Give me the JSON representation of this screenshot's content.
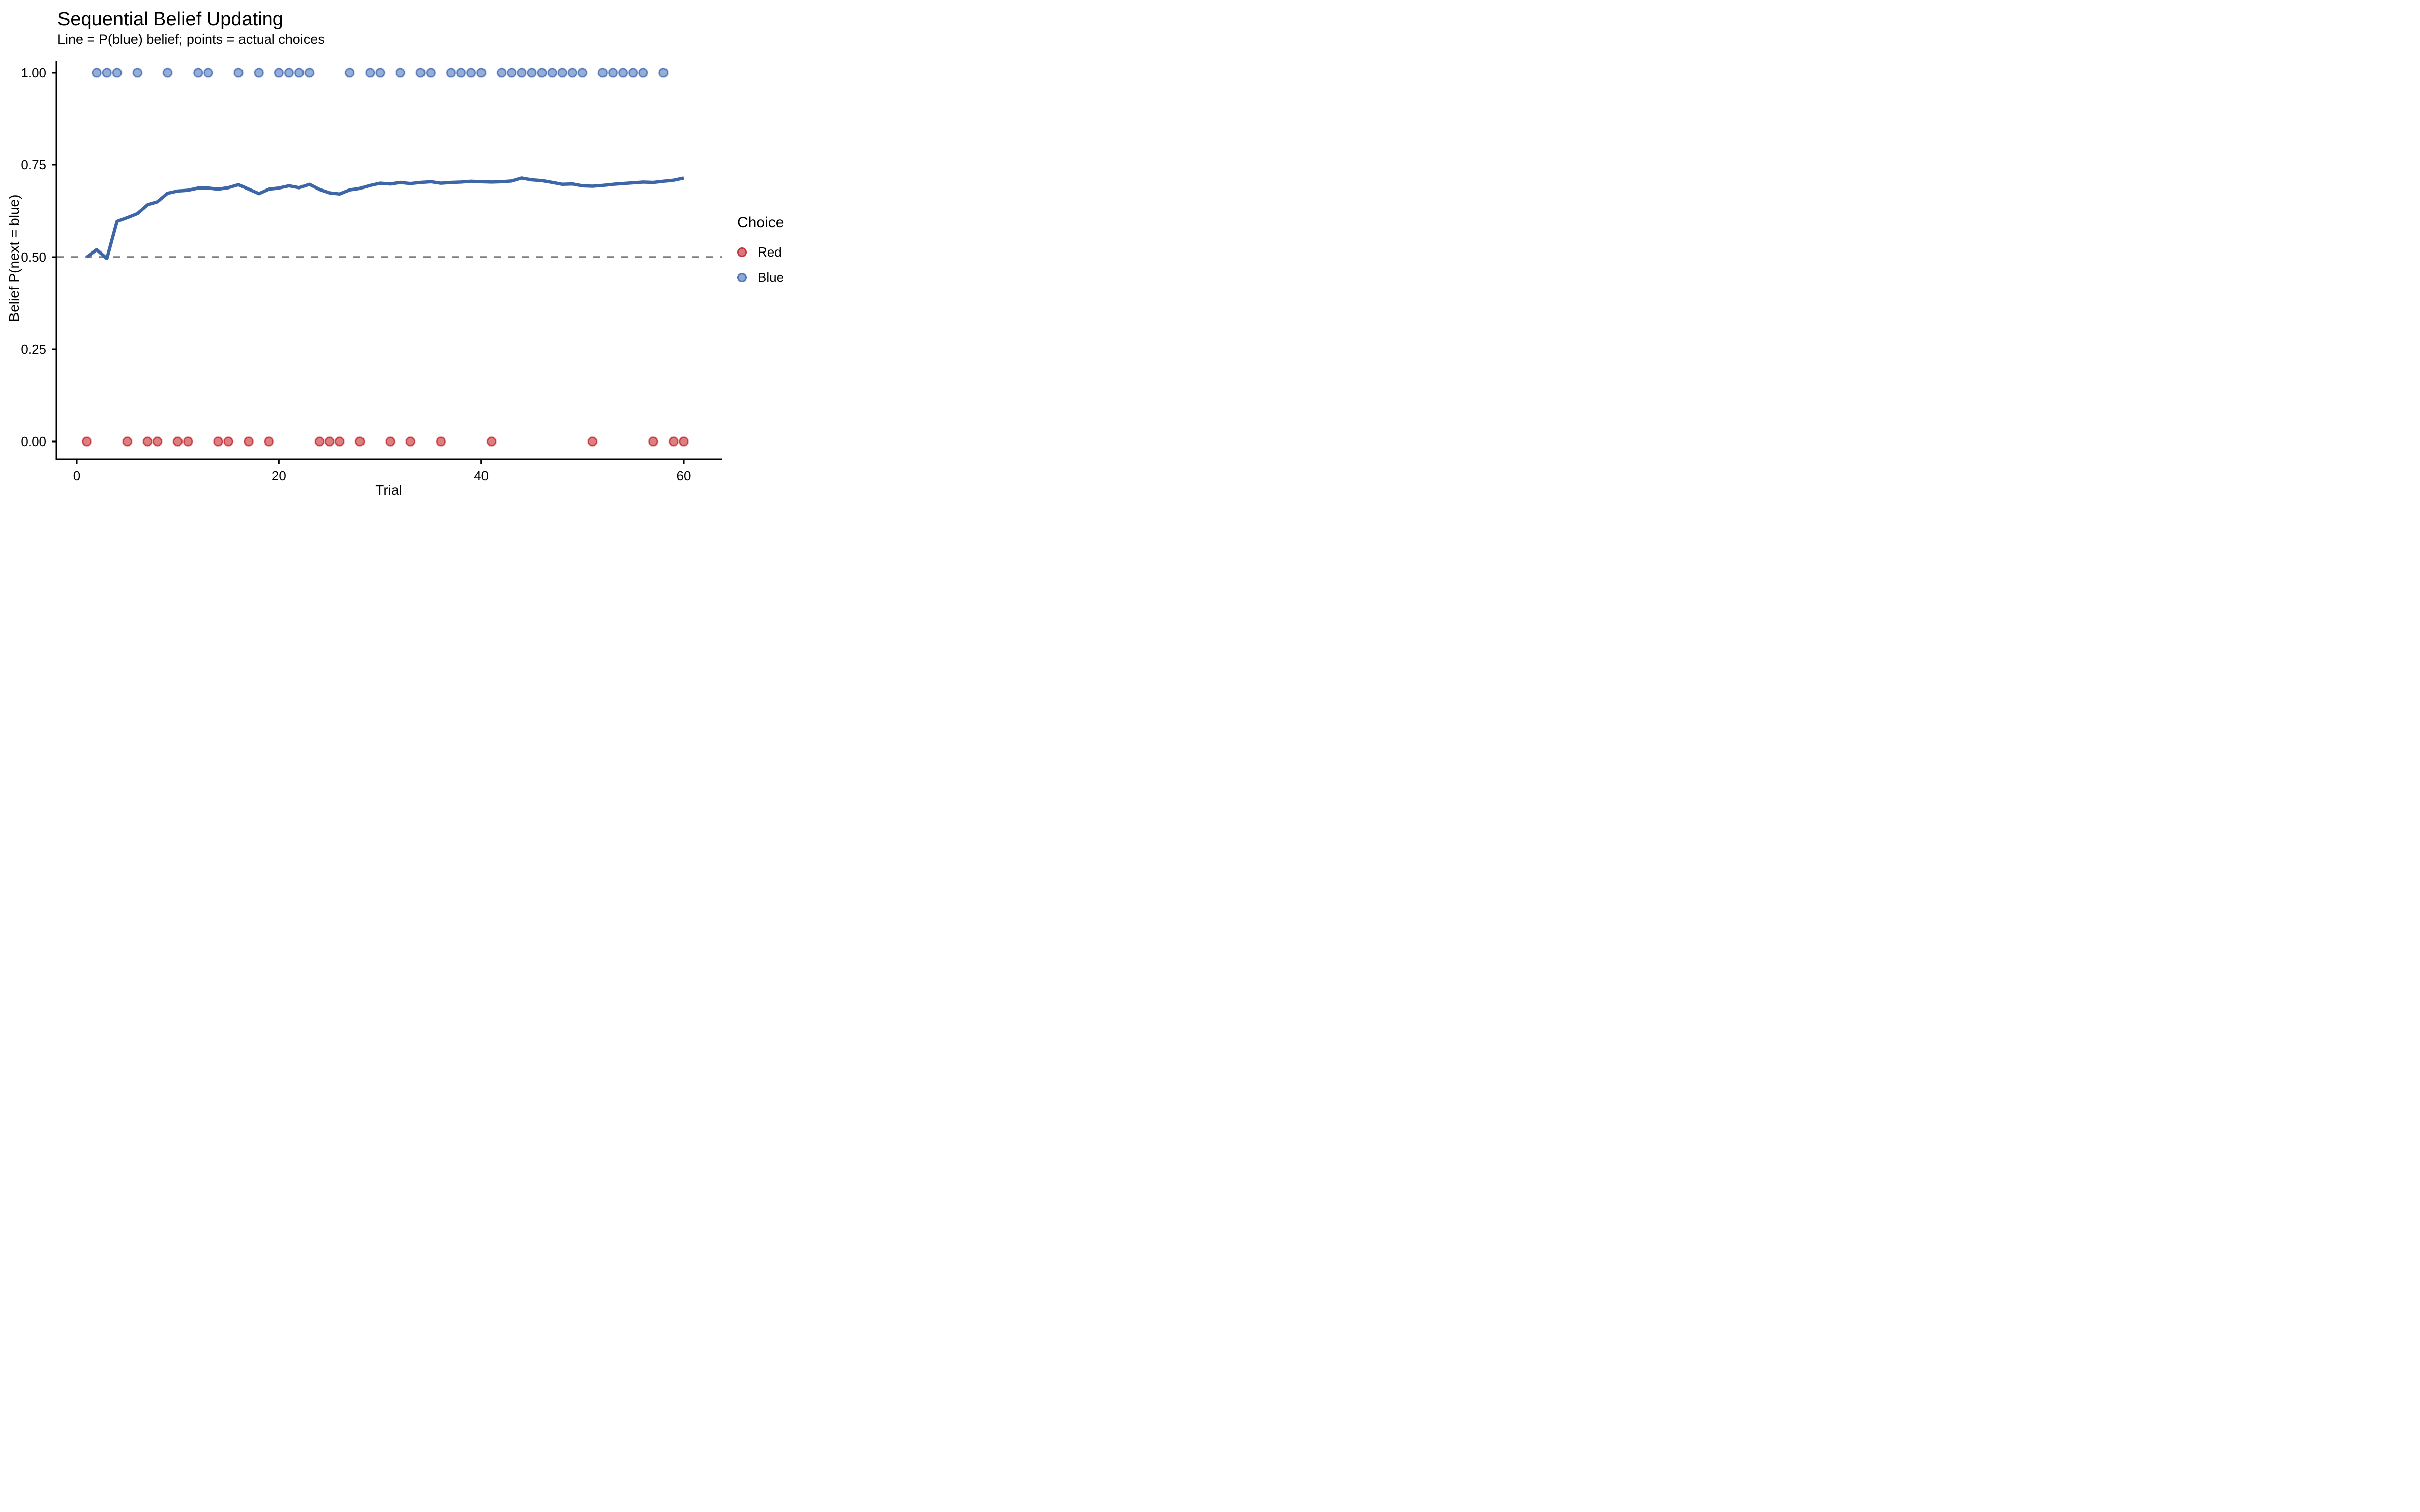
{
  "title": "Sequential Belief Updating",
  "subtitle": "Line = P(blue) belief; points = actual choices",
  "axes": {
    "x": {
      "label": "Trial",
      "tick_values": [
        0,
        20,
        40,
        60
      ],
      "tick_labels": [
        "0",
        "20",
        "40",
        "60"
      ],
      "range": [
        0,
        62
      ]
    },
    "y": {
      "label": "Belief P(next = blue)",
      "tick_values": [
        1.0,
        0.75,
        0.5,
        0.25,
        0.0
      ],
      "tick_labels": [
        "1.00",
        "0.75",
        "0.50",
        "0.25",
        "0.00"
      ],
      "range": [
        0,
        1
      ]
    }
  },
  "legend": {
    "title": "Choice",
    "items": [
      {
        "label": "Red",
        "fill": "#DB787B",
        "stroke": "#C5383F"
      },
      {
        "label": "Blue",
        "fill": "#8FA8D5",
        "stroke": "#5276B7"
      }
    ]
  },
  "colors": {
    "belief_line": "#3D66A8",
    "reference_line": "#7F7F7F",
    "axis": "#000000",
    "red_fill": "#DB787B",
    "red_stroke": "#C5383F",
    "blue_fill": "#8FA8D5",
    "blue_stroke": "#5276B7"
  },
  "chart_data": {
    "type": "line+scatter",
    "title": "Sequential Belief Updating",
    "subtitle": "Line = P(blue) belief; points = actual choices",
    "xlabel": "Trial",
    "ylabel": "Belief P(next = blue)",
    "xlim": [
      0,
      62
    ],
    "ylim": [
      0,
      1
    ],
    "reference_line_y": 0.5,
    "reference_line_style": "dashed",
    "n_trials": 60,
    "series": [
      {
        "name": "belief",
        "kind": "line",
        "x_start": 1,
        "values": [
          0.5,
          0.52,
          0.496,
          0.597,
          0.607,
          0.618,
          0.642,
          0.65,
          0.673,
          0.679,
          0.681,
          0.687,
          0.687,
          0.684,
          0.688,
          0.696,
          0.684,
          0.672,
          0.684,
          0.687,
          0.693,
          0.688,
          0.697,
          0.683,
          0.674,
          0.671,
          0.682,
          0.686,
          0.694,
          0.7,
          0.698,
          0.702,
          0.699,
          0.702,
          0.704,
          0.7,
          0.702,
          0.703,
          0.705,
          0.704,
          0.703,
          0.704,
          0.706,
          0.714,
          0.709,
          0.707,
          0.702,
          0.697,
          0.698,
          0.693,
          0.692,
          0.694,
          0.697,
          0.699,
          0.701,
          0.703,
          0.702,
          0.705,
          0.708,
          0.714
        ]
      },
      {
        "name": "choices",
        "kind": "scatter",
        "x_start": 1,
        "values": [
          "R",
          "B",
          "B",
          "B",
          "R",
          "B",
          "R",
          "R",
          "B",
          "R",
          "R",
          "B",
          "B",
          "R",
          "R",
          "B",
          "R",
          "B",
          "R",
          "B",
          "B",
          "B",
          "B",
          "R",
          "R",
          "R",
          "B",
          "R",
          "B",
          "B",
          "R",
          "B",
          "R",
          "B",
          "B",
          "R",
          "B",
          "B",
          "B",
          "B",
          "R",
          "B",
          "B",
          "B",
          "B",
          "B",
          "B",
          "B",
          "B",
          "B",
          "R",
          "B",
          "B",
          "B",
          "B",
          "B",
          "R",
          "B",
          "R",
          "R"
        ],
        "red_y": 0.0,
        "blue_y": 1.0,
        "red_trials": [
          1,
          5,
          7,
          8,
          10,
          11,
          14,
          15,
          17,
          19,
          24,
          25,
          26,
          28,
          31,
          33,
          36,
          41,
          51,
          57,
          59,
          60
        ],
        "blue_trials": [
          2,
          3,
          4,
          6,
          9,
          12,
          13,
          16,
          18,
          20,
          21,
          22,
          23,
          27,
          29,
          30,
          32,
          34,
          35,
          37,
          38,
          39,
          40,
          42,
          43,
          44,
          45,
          46,
          47,
          48,
          49,
          50,
          52,
          53,
          54,
          55,
          56,
          58
        ]
      }
    ]
  }
}
